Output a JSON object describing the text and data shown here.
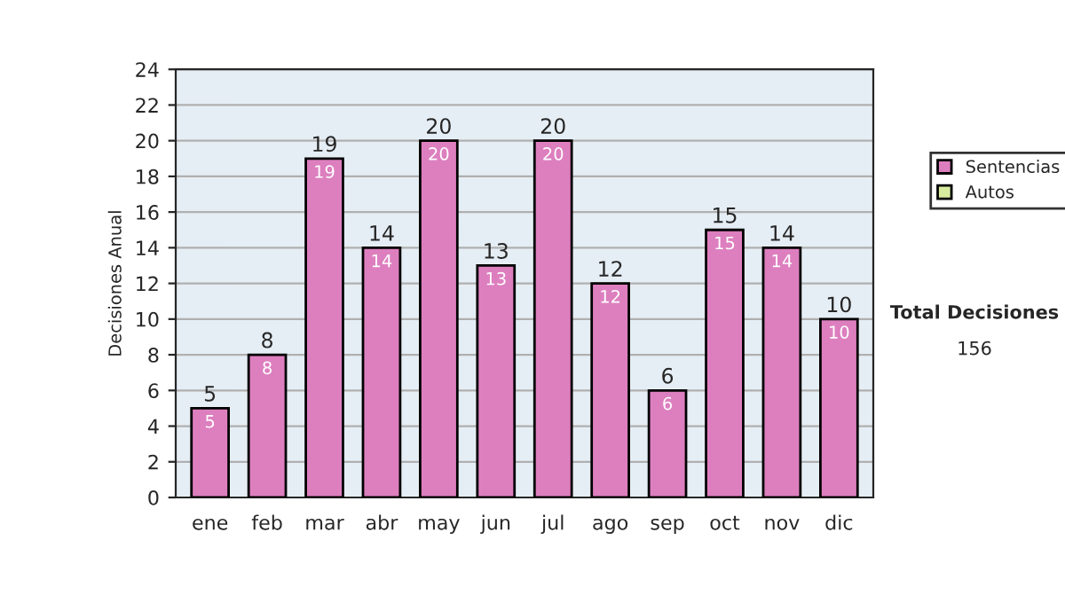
{
  "chart_data": {
    "type": "bar",
    "ylabel": "Decisiones Anual",
    "categories": [
      "ene",
      "feb",
      "mar",
      "abr",
      "may",
      "jun",
      "jul",
      "ago",
      "sep",
      "oct",
      "nov",
      "dic"
    ],
    "stacked": true,
    "series": [
      {
        "name": "Sentencias",
        "color": "#dd7fbf",
        "values": [
          5,
          8,
          19,
          14,
          20,
          13,
          20,
          12,
          6,
          15,
          14,
          10
        ],
        "value_labels": [
          "5",
          "8",
          "19",
          "14",
          "20",
          "13",
          "20",
          "12",
          "6",
          "15",
          "14",
          "10"
        ]
      },
      {
        "name": "Autos",
        "color": "#d8eca0",
        "values": [
          0,
          0,
          0,
          0,
          0,
          0,
          0,
          0,
          0,
          0,
          0,
          0
        ]
      }
    ],
    "totals": [
      "5",
      "8",
      "19",
      "14",
      "20",
      "13",
      "20",
      "12",
      "6",
      "15",
      "14",
      "10"
    ],
    "ylim": [
      0,
      24
    ],
    "yticks": [
      0,
      2,
      4,
      6,
      8,
      10,
      12,
      14,
      16,
      18,
      20,
      22,
      24
    ],
    "grid": "y",
    "legend": "right",
    "annotations": [
      "Total Decisiones",
      "156"
    ]
  }
}
